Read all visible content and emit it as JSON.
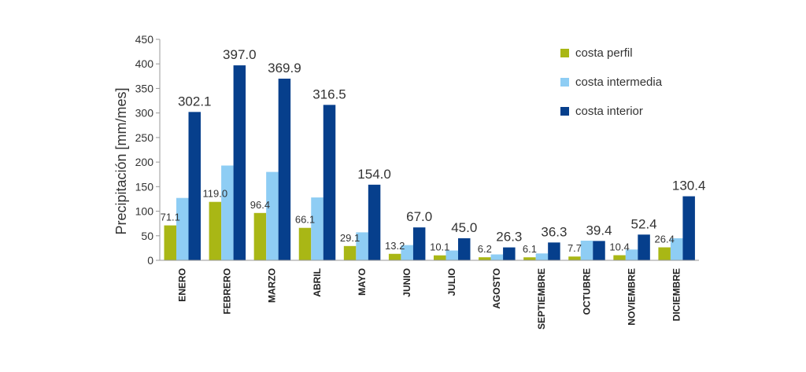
{
  "chart_data": {
    "type": "bar",
    "ylabel": "Precipitación [mm/mes]",
    "ylim": [
      0,
      450
    ],
    "yticks": [
      0,
      50,
      100,
      150,
      200,
      250,
      300,
      350,
      400,
      450
    ],
    "grid": false,
    "legend_position": "top-right",
    "categories": [
      "ENERO",
      "FEBRERO",
      "MARZO",
      "ABRIL",
      "MAYO",
      "JUNIO",
      "JULIO",
      "AGOSTO",
      "SEPTIEMBRE",
      "OCTUBRE",
      "NOVIEMBRE",
      "DICIEMBRE"
    ],
    "series": [
      {
        "name": "costa perfil",
        "color": "#a9b715",
        "values": [
          71.1,
          119.0,
          96.4,
          66.1,
          29.1,
          13.2,
          10.1,
          6.2,
          6.1,
          7.7,
          10.4,
          26.4
        ],
        "labels": [
          "71.1",
          "119.0",
          "96.4",
          "66.1",
          "29.1",
          "13.2",
          "10.1",
          "6.2",
          "6.1",
          "7.7",
          "10.4",
          "26.4"
        ]
      },
      {
        "name": "costa intermedia",
        "color": "#8ecdf4",
        "values": [
          127,
          193,
          180,
          128,
          57,
          31,
          20,
          12,
          14,
          40,
          22,
          45
        ],
        "labels": []
      },
      {
        "name": "costa interior",
        "color": "#063f8c",
        "values": [
          302.1,
          397.0,
          369.9,
          316.5,
          154.0,
          67.0,
          45.0,
          26.3,
          36.3,
          39.4,
          52.4,
          130.4
        ],
        "labels": [
          "302.1",
          "397.0",
          "369.9",
          "316.5",
          "154.0",
          "67.0",
          "45.0",
          "26.3",
          "36.3",
          "39.4",
          "52.4",
          "130.4"
        ]
      }
    ]
  }
}
